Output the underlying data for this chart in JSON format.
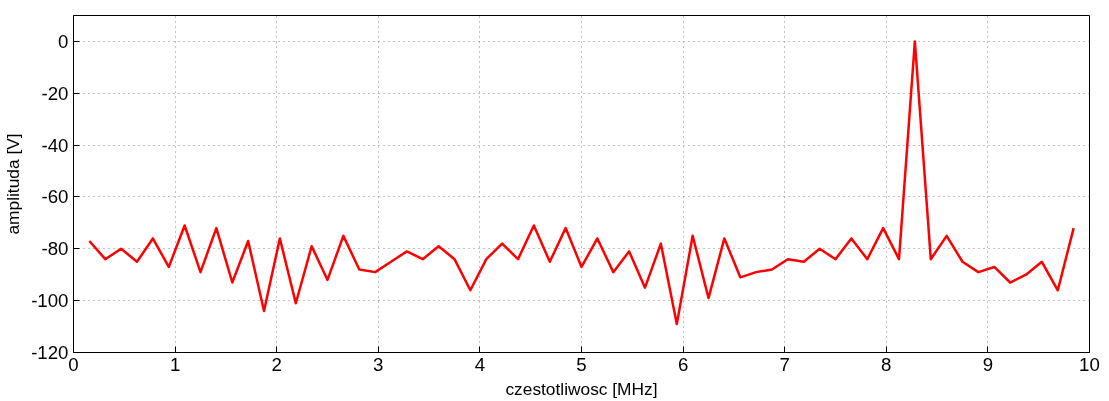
{
  "chart_data": {
    "type": "line",
    "xlabel": "czestotliwosc [MHz]",
    "ylabel": "amplituda [V]",
    "x": [
      0.156,
      0.313,
      0.469,
      0.625,
      0.781,
      0.938,
      1.094,
      1.25,
      1.406,
      1.563,
      1.719,
      1.875,
      2.031,
      2.188,
      2.344,
      2.5,
      2.656,
      2.813,
      2.969,
      3.125,
      3.281,
      3.438,
      3.594,
      3.75,
      3.906,
      4.063,
      4.219,
      4.375,
      4.531,
      4.688,
      4.844,
      5.0,
      5.156,
      5.313,
      5.469,
      5.625,
      5.781,
      5.938,
      6.094,
      6.25,
      6.406,
      6.563,
      6.719,
      6.875,
      7.031,
      7.188,
      7.344,
      7.5,
      7.656,
      7.813,
      7.969,
      8.125,
      8.281,
      8.438,
      8.594,
      8.75,
      8.906,
      9.063,
      9.219,
      9.375,
      9.531,
      9.688,
      9.844
    ],
    "series": [
      {
        "color": "#ff0000",
        "values": [
          -77,
          -84,
          -80,
          -85,
          -76,
          -87,
          -71,
          -89,
          -72,
          -93,
          -77,
          -104,
          -76,
          -101,
          -79,
          -92,
          -75,
          -88,
          -89,
          -85,
          -81,
          -84,
          -79,
          -84,
          -96,
          -84,
          -78,
          -84,
          -71,
          -85,
          -72,
          -87,
          -76,
          -89,
          -81,
          -95,
          -78,
          -109,
          -75,
          -99,
          -76,
          -91,
          -89,
          -88,
          -84,
          -85,
          -80,
          -84,
          -76,
          -84,
          -72,
          -84,
          0,
          -84,
          -75,
          -85,
          -89,
          -87,
          -93,
          -90,
          -85,
          -96,
          -72
        ]
      }
    ],
    "xlim": [
      0,
      10
    ],
    "ylim": [
      -120,
      10
    ],
    "xticks": [
      0,
      1,
      2,
      3,
      4,
      5,
      6,
      7,
      8,
      9,
      10
    ],
    "yticks": [
      -120,
      -100,
      -80,
      -60,
      -40,
      -20,
      0
    ],
    "grid": true,
    "line_style": "solid",
    "marker": "none"
  }
}
